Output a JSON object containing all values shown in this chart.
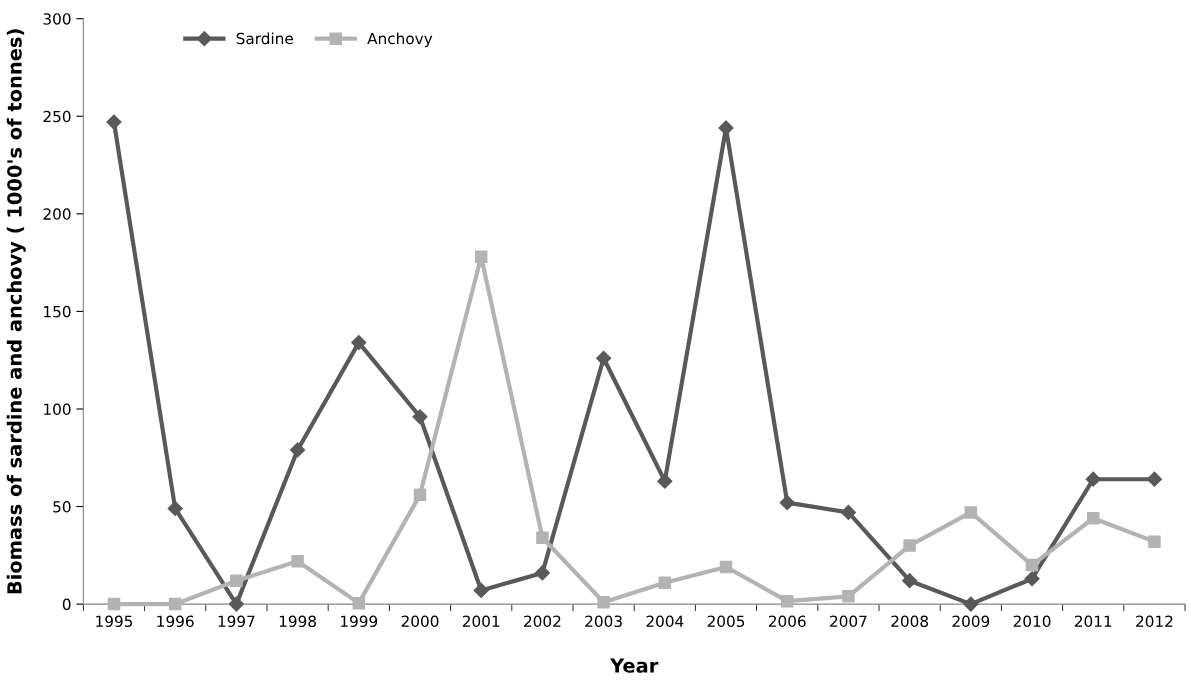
{
  "chart_data": {
    "type": "line",
    "xlabel": "Year",
    "ylabel": "Biomass of sardine and anchovy ( 1000's of tonnes)",
    "categories": [
      "1995",
      "1996",
      "1997",
      "1998",
      "1999",
      "2000",
      "2001",
      "2002",
      "2003",
      "2004",
      "2005",
      "2006",
      "2007",
      "2008",
      "2009",
      "2010",
      "2011",
      "2012"
    ],
    "series": [
      {
        "name": "Sardine",
        "color": "#595959",
        "marker": "diamond",
        "values": [
          247,
          49,
          0,
          79,
          134,
          96,
          7,
          16,
          126,
          63,
          244,
          52,
          47,
          12,
          0,
          13,
          64,
          64
        ]
      },
      {
        "name": "Anchovy",
        "color": "#b3b3b3",
        "marker": "square",
        "values": [
          0,
          0,
          12,
          22,
          0.5,
          56,
          178,
          34,
          1,
          11,
          19,
          1.5,
          4,
          30,
          47,
          20,
          44,
          32
        ]
      }
    ],
    "ylim": [
      0,
      300
    ],
    "yticks": [
      0,
      50,
      100,
      150,
      200,
      250,
      300
    ],
    "grid": false,
    "legend": "top left",
    "line_style": "solid"
  }
}
